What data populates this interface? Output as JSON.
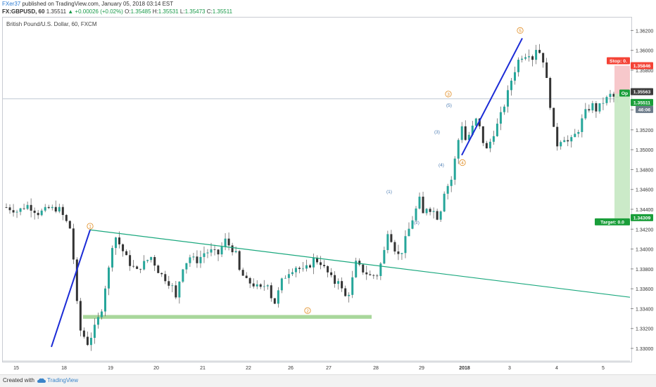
{
  "header": {
    "author": "FXer37",
    "published_text": "published on TradingView.com, January 05, 2018 03:14 EST",
    "symbol": "FX:GBPUSD, 60",
    "last": "1.35511",
    "change": "▲ +0.00026 (+0.02%)",
    "o_label": "O:",
    "o_val": "1.35485",
    "h_label": "H:",
    "h_val": "1.35531",
    "l_label": "L:",
    "l_val": "1.35473",
    "c_label": "C:",
    "c_val": "1.35511"
  },
  "legend": "British Pound/U.S. Dollar, 60, FXCM",
  "footer": {
    "created": "Created with",
    "brand": "TradingView"
  },
  "colors": {
    "up": "#26a69a",
    "down": "#333333",
    "trend_green": "#1aa87e",
    "impulse_blue": "#1b2bd6",
    "support_zone": "#8bc97a",
    "stop_red": "#f44336",
    "target_green": "#1a9e3a",
    "wave_orange": "#e08a1e",
    "wave_blue": "#4a7bb3"
  },
  "chart_data": {
    "type": "candlestick",
    "symbol": "FX:GBPUSD",
    "timeframe": "60",
    "x_ticks": [
      "15",
      "18",
      "19",
      "20",
      "21",
      "22",
      "25",
      "26",
      "27",
      "28",
      "29",
      "2018",
      "3",
      "4",
      "5"
    ],
    "y_ticks": [
      "1.33000",
      "1.33200",
      "1.33400",
      "1.33600",
      "1.33800",
      "1.34000",
      "1.34200",
      "1.34400",
      "1.34600",
      "1.34800",
      "1.35000",
      "1.35200",
      "1.35400",
      "1.35600",
      "1.35800",
      "1.36000",
      "1.36200"
    ],
    "ylim": [
      1.3288,
      1.3633
    ],
    "close_path": [
      [
        0,
        1.3442
      ],
      [
        3,
        1.3438
      ],
      [
        6,
        1.3444
      ],
      [
        9,
        1.3436
      ],
      [
        12,
        1.3441
      ],
      [
        15,
        1.344
      ],
      [
        18,
        1.3421
      ],
      [
        19,
        1.339
      ],
      [
        20,
        1.3345
      ],
      [
        21,
        1.3318
      ],
      [
        22,
        1.3312
      ],
      [
        23,
        1.3305
      ],
      [
        24,
        1.3312
      ],
      [
        25,
        1.3321
      ],
      [
        26,
        1.333
      ],
      [
        27,
        1.334
      ],
      [
        28,
        1.3362
      ],
      [
        29,
        1.338
      ],
      [
        30,
        1.3404
      ],
      [
        31,
        1.3412
      ],
      [
        33,
        1.3398
      ],
      [
        35,
        1.3385
      ],
      [
        37,
        1.3378
      ],
      [
        39,
        1.3386
      ],
      [
        41,
        1.3392
      ],
      [
        43,
        1.3378
      ],
      [
        45,
        1.337
      ],
      [
        47,
        1.3362
      ],
      [
        48,
        1.335
      ],
      [
        49,
        1.3368
      ],
      [
        50,
        1.3382
      ],
      [
        52,
        1.3392
      ],
      [
        54,
        1.3388
      ],
      [
        56,
        1.3396
      ],
      [
        58,
        1.3398
      ],
      [
        60,
        1.3395
      ],
      [
        62,
        1.3409
      ],
      [
        63,
        1.3404
      ],
      [
        65,
        1.3395
      ],
      [
        66,
        1.3378
      ],
      [
        68,
        1.3368
      ],
      [
        70,
        1.3364
      ],
      [
        72,
        1.336
      ],
      [
        74,
        1.3366
      ],
      [
        75,
        1.3352
      ],
      [
        76,
        1.3346
      ],
      [
        78,
        1.3368
      ],
      [
        80,
        1.3377
      ],
      [
        82,
        1.3382
      ],
      [
        84,
        1.3378
      ],
      [
        86,
        1.3384
      ],
      [
        87,
        1.339
      ],
      [
        89,
        1.3386
      ],
      [
        91,
        1.3376
      ],
      [
        93,
        1.3366
      ],
      [
        94,
        1.337
      ],
      [
        95,
        1.3359
      ],
      [
        96,
        1.3352
      ],
      [
        97,
        1.3356
      ],
      [
        98,
        1.337
      ],
      [
        99,
        1.3386
      ],
      [
        100,
        1.3382
      ],
      [
        101,
        1.3378
      ],
      [
        103,
        1.3373
      ],
      [
        105,
        1.3374
      ],
      [
        106,
        1.3385
      ],
      [
        107,
        1.3398
      ],
      [
        108,
        1.3418
      ],
      [
        109,
        1.341
      ],
      [
        110,
        1.34
      ],
      [
        111,
        1.3394
      ],
      [
        112,
        1.3398
      ],
      [
        113,
        1.341
      ],
      [
        114,
        1.342
      ],
      [
        116,
        1.344
      ],
      [
        117,
        1.345
      ],
      [
        118,
        1.3435
      ],
      [
        119,
        1.3442
      ],
      [
        121,
        1.3438
      ],
      [
        122,
        1.3432
      ],
      [
        123,
        1.344
      ],
      [
        124,
        1.3458
      ],
      [
        126,
        1.347
      ],
      [
        127,
        1.349
      ],
      [
        128,
        1.351
      ],
      [
        129,
        1.3525
      ],
      [
        130,
        1.351
      ],
      [
        131,
        1.3515
      ],
      [
        133,
        1.353
      ],
      [
        134,
        1.3522
      ],
      [
        135,
        1.3508
      ],
      [
        136,
        1.35
      ],
      [
        137,
        1.3508
      ],
      [
        139,
        1.3525
      ],
      [
        141,
        1.3545
      ],
      [
        143,
        1.357
      ],
      [
        144,
        1.358
      ],
      [
        145,
        1.359
      ],
      [
        146,
        1.3594
      ],
      [
        148,
        1.3597
      ],
      [
        149,
        1.3592
      ],
      [
        150,
        1.3602
      ],
      [
        151,
        1.3598
      ],
      [
        152,
        1.359
      ],
      [
        153,
        1.357
      ],
      [
        154,
        1.3545
      ],
      [
        155,
        1.352
      ],
      [
        156,
        1.3505
      ],
      [
        157,
        1.351
      ],
      [
        158,
        1.3512
      ],
      [
        159,
        1.3508
      ],
      [
        160,
        1.351
      ],
      [
        161,
        1.3515
      ],
      [
        162,
        1.352
      ],
      [
        163,
        1.353
      ],
      [
        164,
        1.3538
      ],
      [
        166,
        1.3545
      ],
      [
        167,
        1.354
      ],
      [
        169,
        1.3548
      ],
      [
        171,
        1.3555
      ],
      [
        172,
        1.3553
      ],
      [
        173,
        1.3551
      ]
    ],
    "trendline": {
      "from": {
        "x": 18.55,
        "y": 1.34193
      },
      "to": {
        "x": 5.6,
        "y": 1.33515
      },
      "note": "x in day positions"
    },
    "support_zone": {
      "y_top": 1.33336,
      "y_bottom": 1.33298
    },
    "impulse_lines": [
      {
        "from_price": 1.33015,
        "to_price": 1.34193
      },
      {
        "from_price": 1.34945,
        "to_price": 1.36122
      }
    ],
    "wave_labels_primary": [
      {
        "label": "1",
        "price": 1.3423
      },
      {
        "label": "2",
        "price": 1.3338
      },
      {
        "label": "3",
        "price": 1.3556
      },
      {
        "label": "4",
        "price": 1.3487
      },
      {
        "label": "5",
        "price": 1.362
      }
    ],
    "wave_labels_minor": [
      {
        "label": "(1)",
        "price": 1.3458
      },
      {
        "label": "(2)",
        "price": 1.3427
      },
      {
        "label": "(3)",
        "price": 1.3518
      },
      {
        "label": "(4)",
        "price": 1.3485
      },
      {
        "label": "(5)",
        "price": 1.3545
      }
    ],
    "position": {
      "stop_label": "Stop: 0.",
      "stop_price": "1.35846",
      "entry_label": "Op",
      "entry_price": "1.35563",
      "last_price": "1.35511",
      "countdown": "46:06",
      "target_label": "Target: 0.0",
      "target_price": "1.34309"
    }
  }
}
